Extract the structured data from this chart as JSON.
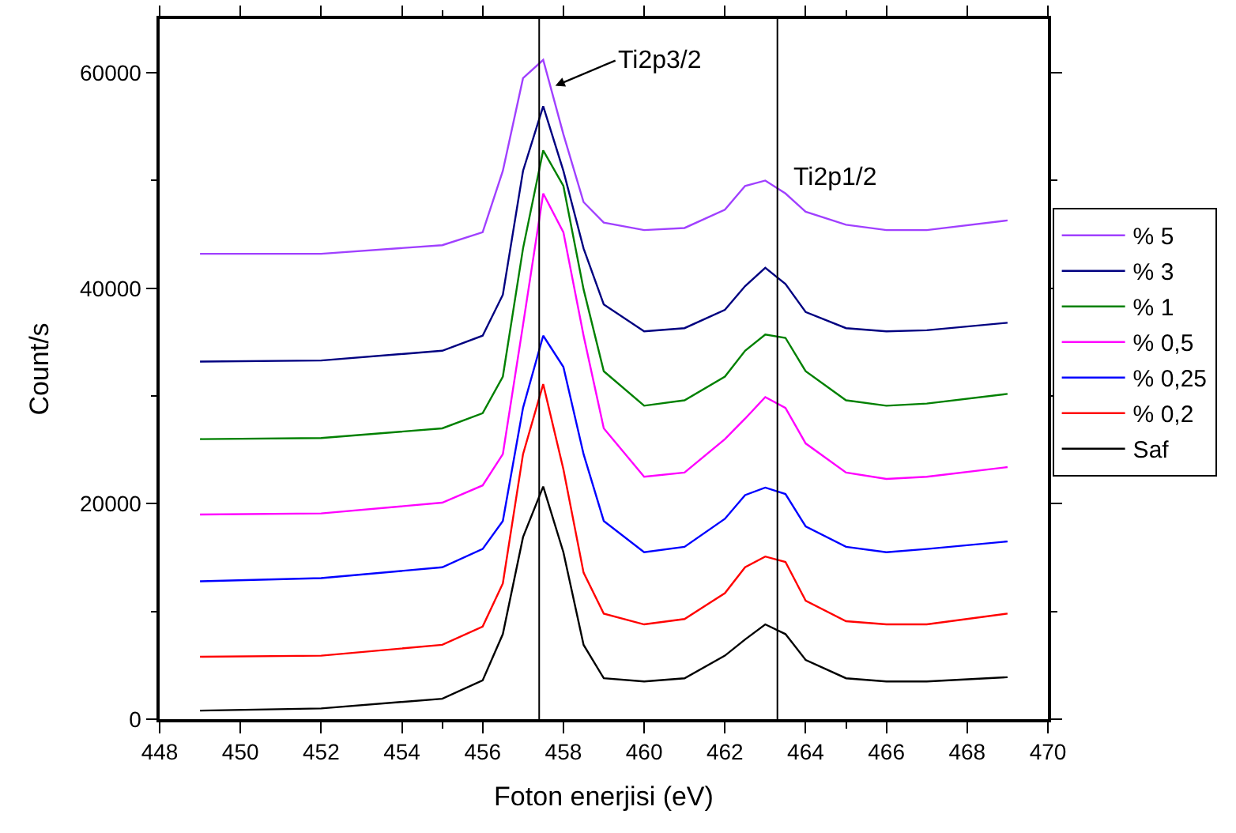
{
  "chart_data": {
    "type": "line",
    "xlabel": "Foton enerjisi (eV)",
    "ylabel": "Count/s",
    "x": [
      449,
      452,
      455,
      456,
      456.5,
      457,
      457.5,
      458,
      458.5,
      459,
      460,
      461,
      462,
      462.5,
      463,
      463.5,
      464,
      465,
      466,
      467,
      469
    ],
    "series": [
      {
        "name": "% 5",
        "color": "#a040ff",
        "values": [
          43200,
          43200,
          44000,
          45200,
          50900,
          59500,
          61200,
          54300,
          48000,
          46100,
          45400,
          45600,
          47300,
          49500,
          50000,
          48800,
          47100,
          45900,
          45400,
          45400,
          46300
        ]
      },
      {
        "name": "% 3",
        "color": "#000080",
        "values": [
          33200,
          33300,
          34200,
          35600,
          39400,
          50900,
          56900,
          50900,
          43700,
          38500,
          36000,
          36300,
          38000,
          40200,
          41900,
          40400,
          37800,
          36300,
          36000,
          36100,
          36800
        ]
      },
      {
        "name": "% 1",
        "color": "#008000",
        "values": [
          26000,
          26100,
          27000,
          28400,
          31800,
          43700,
          52800,
          49500,
          39900,
          32300,
          29100,
          29600,
          31800,
          34200,
          35700,
          35400,
          32300,
          29600,
          29100,
          29300,
          30200
        ]
      },
      {
        "name": "% 0,5",
        "color": "#ff00ff",
        "values": [
          19000,
          19100,
          20100,
          21700,
          24600,
          36600,
          48800,
          45200,
          35600,
          27000,
          22500,
          22900,
          26000,
          27900,
          29900,
          28900,
          25600,
          22900,
          22300,
          22500,
          23400
        ]
      },
      {
        "name": "% 0,25",
        "color": "#0000ff",
        "values": [
          12800,
          13100,
          14100,
          15800,
          18400,
          28900,
          35600,
          32700,
          24600,
          18400,
          15500,
          16000,
          18600,
          20800,
          21500,
          20900,
          17900,
          16000,
          15500,
          15800,
          16500
        ]
      },
      {
        "name": "% 0,2",
        "color": "#ff0000",
        "values": [
          5800,
          5900,
          6900,
          8600,
          12600,
          24600,
          31100,
          23200,
          13600,
          9800,
          8800,
          9300,
          11700,
          14100,
          15100,
          14600,
          11000,
          9100,
          8800,
          8800,
          9800
        ]
      },
      {
        "name": "Saf",
        "color": "#000000",
        "values": [
          800,
          1000,
          1900,
          3600,
          7900,
          16900,
          21600,
          15500,
          6900,
          3800,
          3500,
          3800,
          5900,
          7400,
          8800,
          7900,
          5500,
          3800,
          3500,
          3500,
          3900
        ]
      }
    ],
    "xlim": [
      448,
      470
    ],
    "xticks": [
      448,
      450,
      452,
      454,
      456,
      458,
      460,
      462,
      464,
      466,
      468,
      470
    ],
    "ylim": [
      0,
      65000
    ],
    "yticks": [
      0,
      20000,
      40000,
      60000
    ],
    "ref_lines": [
      {
        "axis": "x",
        "value": 457.4,
        "color": "#000000"
      },
      {
        "axis": "x",
        "value": 463.3,
        "color": "#000000"
      }
    ],
    "annotations": [
      {
        "text": "Ti2p3/2",
        "x": 457.8,
        "y": 58800
      },
      {
        "text": "Ti2p1/2",
        "x": 463.3,
        "y": 50200
      }
    ],
    "legend": "right",
    "marker": "none",
    "line_style": "solid"
  }
}
